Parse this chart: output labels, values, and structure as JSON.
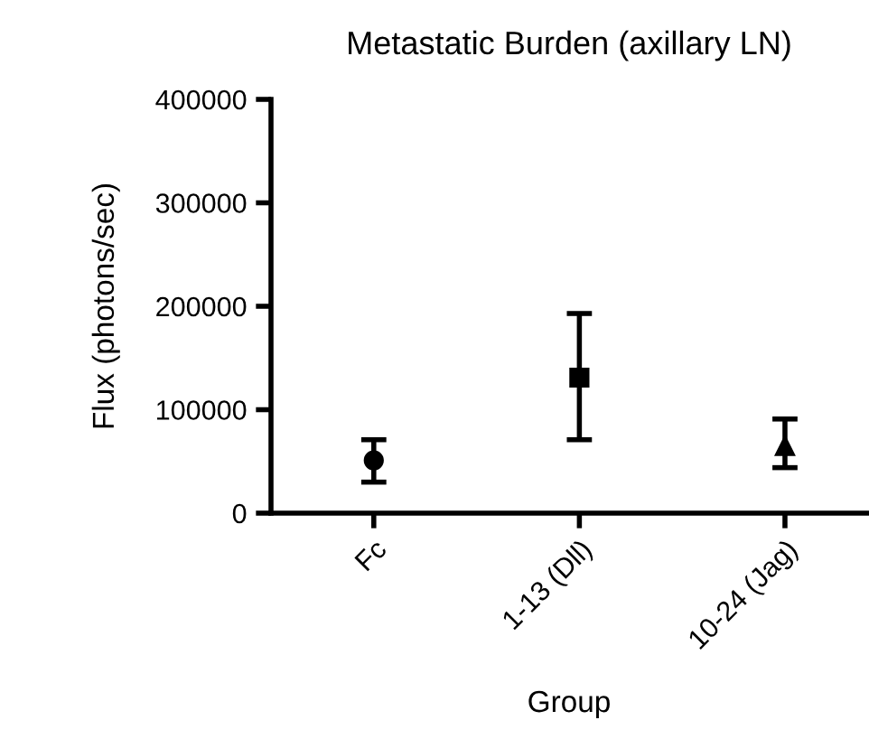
{
  "chart_data": {
    "type": "scatter",
    "title": "Metastatic Burden (axillary LN)",
    "xlabel": "Group",
    "ylabel": "Flux (photons/sec)",
    "categories": [
      "Fc",
      "1-13 (Dll)",
      "10-24 (Jag)"
    ],
    "series": [
      {
        "color": "#000000",
        "marker": "circle",
        "values": [
          51000,
          null,
          null
        ],
        "errors": [
          [
            30000,
            71000
          ],
          null,
          null
        ]
      },
      {
        "color": "#000000",
        "marker": "square",
        "values": [
          null,
          131000,
          null
        ],
        "errors": [
          null,
          [
            71000,
            193000
          ],
          null
        ]
      },
      {
        "color": "#000000",
        "marker": "triangle",
        "values": [
          null,
          null,
          65000
        ],
        "errors": [
          null,
          null,
          [
            44000,
            91000
          ]
        ]
      }
    ],
    "ylim": [
      0,
      400000
    ],
    "yticks": [
      0,
      100000,
      200000,
      300000,
      400000
    ],
    "grid": false,
    "legend": false
  }
}
